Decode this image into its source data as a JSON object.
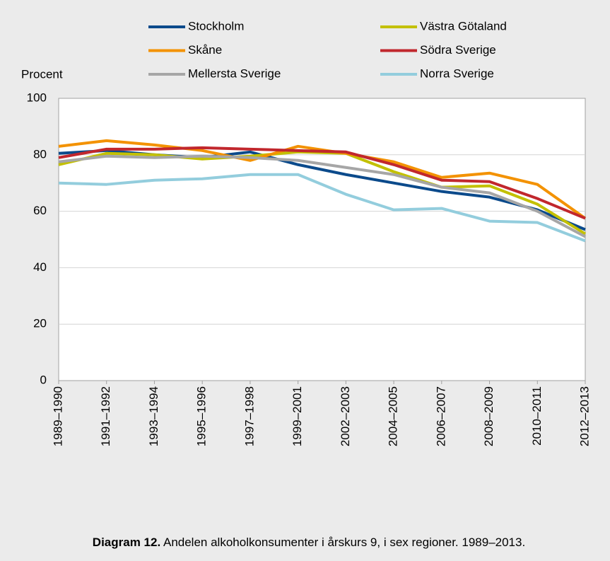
{
  "chart_data": {
    "type": "line",
    "y_label": "Procent",
    "caption_label": "Diagram 12.",
    "caption_text": "Andelen alkoholkonsumenter i årskurs 9, i sex regioner. 1989–2013.",
    "categories": [
      "1989–1990",
      "1991–1992",
      "1993–1994",
      "1995–1996",
      "1997–1998",
      "1999–2001",
      "2002–2003",
      "2004–2005",
      "2006–2007",
      "2008–2009",
      "2010–2011",
      "2012–2013"
    ],
    "series": [
      {
        "name": "Stockholm",
        "color": "#0b4a8b",
        "values": [
          80.5,
          81.5,
          80,
          79,
          81,
          76.5,
          73,
          70,
          67,
          65,
          60.5,
          53.5
        ]
      },
      {
        "name": "Västra Götaland",
        "color": "#c3c000",
        "values": [
          76.5,
          80.5,
          80,
          78.5,
          79.5,
          81,
          80.5,
          74,
          68.5,
          69,
          62.5,
          52
        ]
      },
      {
        "name": "Skåne",
        "color": "#f39200",
        "values": [
          83,
          85,
          83.5,
          81.5,
          78,
          83,
          80.5,
          77.5,
          72,
          73.5,
          69.5,
          57.5
        ]
      },
      {
        "name": "Södra Sverige",
        "color": "#c1272d",
        "values": [
          79,
          82,
          82,
          82.5,
          82,
          81.5,
          81,
          76.5,
          71,
          70.5,
          64.5,
          57.5
        ]
      },
      {
        "name": "Mellersta Sverige",
        "color": "#a6a6a6",
        "values": [
          77.5,
          79.5,
          79,
          79.5,
          79,
          78,
          75.5,
          73,
          68.5,
          66.5,
          60,
          51
        ]
      },
      {
        "name": "Norra Sverige",
        "color": "#93cddd",
        "values": [
          70,
          69.5,
          71,
          71.5,
          73,
          73,
          66,
          60.5,
          61,
          56.5,
          56,
          49.5
        ]
      }
    ],
    "ylim": [
      0,
      100
    ],
    "yticks": [
      0,
      20,
      40,
      60,
      80,
      100
    ],
    "grid": true
  }
}
